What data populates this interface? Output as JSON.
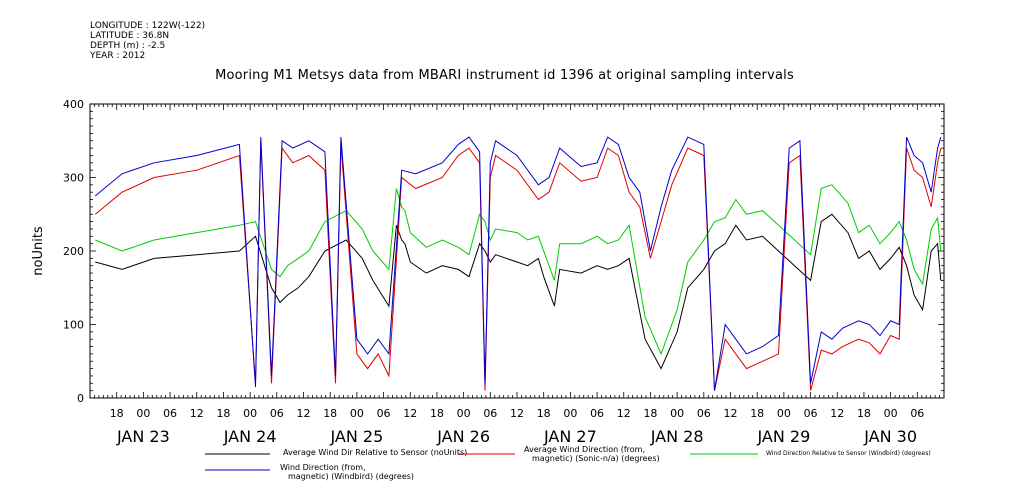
{
  "header": {
    "longitude": "LONGITUDE : 122W(-122)",
    "latitude": "LATITUDE : 36.8N",
    "depth": "DEPTH (m) : -2.5",
    "year": "YEAR : 2012"
  },
  "chart_data": {
    "type": "line",
    "title": "Mooring M1 Metsys data from MBARI instrument id 1396 at original sampling intervals",
    "xlabel": "",
    "ylabel": "noUnits",
    "ylim": [
      0,
      400
    ],
    "yticks": [
      0,
      100,
      200,
      300,
      400
    ],
    "xlim": [
      "2012-01-22T12:00",
      "2012-01-30T12:00"
    ],
    "hour_ticks": [
      "18",
      "00",
      "06",
      "12",
      "18",
      "00",
      "06",
      "12",
      "18",
      "00",
      "06",
      "12",
      "18",
      "00",
      "06",
      "12",
      "18",
      "00",
      "06",
      "12",
      "18",
      "00",
      "06",
      "12",
      "18",
      "00",
      "06",
      "12",
      "18",
      "00",
      "06"
    ],
    "day_labels": [
      "JAN 23",
      "JAN 24",
      "JAN 25",
      "JAN 26",
      "JAN 27",
      "JAN 28",
      "JAN 29",
      "JAN 30"
    ],
    "legend_placement": "bottom",
    "grid": false,
    "series": [
      {
        "name": "Average Wind Dir Relative to Sensor (noUnits)",
        "color": "#000000",
        "x": [
          0.05,
          0.3,
          0.6,
          1.0,
          1.4,
          1.55,
          1.7,
          1.78,
          1.85,
          1.95,
          2.05,
          2.2,
          2.4,
          2.55,
          2.65,
          2.8,
          2.87,
          2.92,
          2.95,
          3.0,
          3.15,
          3.3,
          3.45,
          3.55,
          3.65,
          3.7,
          3.75,
          3.8,
          4.0,
          4.1,
          4.2,
          4.25,
          4.35,
          4.4,
          4.6,
          4.75,
          4.85,
          4.95,
          5.05,
          5.2,
          5.35,
          5.5,
          5.6,
          5.75,
          5.85,
          5.95,
          6.05,
          6.15,
          6.3,
          6.45,
          6.6,
          6.75,
          6.85,
          6.95,
          7.1,
          7.2,
          7.3,
          7.4,
          7.5,
          7.58,
          7.65,
          7.72,
          7.8,
          7.88,
          7.94,
          7.97
        ],
        "y": [
          185,
          175,
          190,
          195,
          200,
          220,
          150,
          130,
          140,
          150,
          165,
          200,
          215,
          190,
          160,
          125,
          235,
          215,
          210,
          185,
          170,
          180,
          175,
          165,
          210,
          200,
          185,
          195,
          185,
          180,
          190,
          165,
          125,
          175,
          170,
          180,
          175,
          180,
          190,
          80,
          40,
          90,
          150,
          175,
          200,
          210,
          235,
          215,
          220,
          200,
          180,
          160,
          240,
          250,
          225,
          190,
          200,
          175,
          190,
          205,
          180,
          140,
          120,
          200,
          210,
          160
        ]
      },
      {
        "name": "Average Wind Direction (from, magnetic) (Sonic-n/a) (degrees)",
        "color": "#dd0000",
        "x": [
          0.05,
          0.3,
          0.6,
          1.0,
          1.4,
          1.55,
          1.6,
          1.7,
          1.8,
          1.9,
          2.05,
          2.2,
          2.3,
          2.35,
          2.5,
          2.6,
          2.7,
          2.8,
          2.92,
          3.05,
          3.3,
          3.45,
          3.55,
          3.65,
          3.7,
          3.75,
          3.8,
          4.0,
          4.2,
          4.3,
          4.4,
          4.6,
          4.75,
          4.85,
          4.95,
          5.05,
          5.15,
          5.25,
          5.35,
          5.45,
          5.6,
          5.75,
          5.85,
          5.95,
          6.05,
          6.15,
          6.3,
          6.45,
          6.55,
          6.65,
          6.75,
          6.85,
          6.95,
          7.05,
          7.2,
          7.3,
          7.4,
          7.5,
          7.58,
          7.65,
          7.72,
          7.8,
          7.88,
          7.94,
          7.97
        ],
        "y": [
          250,
          280,
          300,
          310,
          330,
          20,
          350,
          20,
          340,
          320,
          330,
          310,
          20,
          345,
          60,
          40,
          60,
          30,
          300,
          285,
          300,
          330,
          340,
          320,
          10,
          300,
          330,
          310,
          270,
          280,
          320,
          295,
          300,
          340,
          330,
          280,
          260,
          190,
          240,
          290,
          340,
          330,
          10,
          80,
          60,
          40,
          50,
          60,
          320,
          330,
          10,
          65,
          60,
          70,
          80,
          75,
          60,
          85,
          80,
          340,
          310,
          300,
          260,
          320,
          340
        ]
      },
      {
        "name": "Wind Direction Relative to Sensor (Windbird) (degrees)",
        "color": "#00cc00",
        "x": [
          0.05,
          0.3,
          0.6,
          1.0,
          1.4,
          1.55,
          1.7,
          1.78,
          1.85,
          1.95,
          2.05,
          2.2,
          2.4,
          2.55,
          2.65,
          2.8,
          2.87,
          2.92,
          2.95,
          3.0,
          3.15,
          3.3,
          3.45,
          3.55,
          3.65,
          3.7,
          3.75,
          3.8,
          4.0,
          4.1,
          4.2,
          4.25,
          4.35,
          4.4,
          4.6,
          4.75,
          4.85,
          4.95,
          5.05,
          5.2,
          5.35,
          5.5,
          5.6,
          5.75,
          5.85,
          5.95,
          6.05,
          6.15,
          6.3,
          6.45,
          6.6,
          6.75,
          6.85,
          6.95,
          7.1,
          7.2,
          7.3,
          7.4,
          7.5,
          7.58,
          7.65,
          7.72,
          7.8,
          7.88,
          7.94,
          7.97
        ],
        "y": [
          215,
          200,
          215,
          225,
          235,
          240,
          175,
          165,
          180,
          190,
          200,
          240,
          255,
          230,
          200,
          175,
          285,
          260,
          255,
          225,
          205,
          215,
          205,
          195,
          250,
          240,
          215,
          230,
          225,
          215,
          220,
          200,
          160,
          210,
          210,
          220,
          210,
          215,
          235,
          110,
          60,
          120,
          185,
          215,
          240,
          245,
          270,
          250,
          255,
          235,
          215,
          195,
          285,
          290,
          265,
          225,
          235,
          210,
          225,
          240,
          215,
          175,
          155,
          230,
          245,
          200
        ]
      },
      {
        "name": "Wind Direction (from, magnetic) (Windbird) (degrees)",
        "color": "#0000cc",
        "x": [
          0.05,
          0.3,
          0.6,
          1.0,
          1.4,
          1.55,
          1.6,
          1.7,
          1.8,
          1.9,
          2.05,
          2.2,
          2.3,
          2.35,
          2.5,
          2.6,
          2.7,
          2.8,
          2.92,
          3.05,
          3.3,
          3.45,
          3.55,
          3.65,
          3.7,
          3.75,
          3.8,
          4.0,
          4.2,
          4.3,
          4.4,
          4.6,
          4.75,
          4.85,
          4.95,
          5.05,
          5.15,
          5.25,
          5.35,
          5.45,
          5.6,
          5.75,
          5.85,
          5.95,
          6.05,
          6.15,
          6.3,
          6.45,
          6.55,
          6.65,
          6.75,
          6.85,
          6.95,
          7.05,
          7.2,
          7.3,
          7.4,
          7.5,
          7.58,
          7.65,
          7.72,
          7.8,
          7.88,
          7.94,
          7.97
        ],
        "y": [
          275,
          305,
          320,
          330,
          345,
          15,
          355,
          30,
          350,
          340,
          350,
          335,
          30,
          355,
          80,
          60,
          80,
          60,
          310,
          305,
          320,
          345,
          355,
          335,
          20,
          320,
          350,
          330,
          290,
          300,
          340,
          315,
          320,
          355,
          345,
          300,
          280,
          200,
          260,
          310,
          355,
          345,
          10,
          100,
          80,
          60,
          70,
          85,
          340,
          350,
          20,
          90,
          80,
          95,
          105,
          100,
          85,
          105,
          100,
          355,
          330,
          320,
          280,
          340,
          355
        ]
      }
    ]
  }
}
